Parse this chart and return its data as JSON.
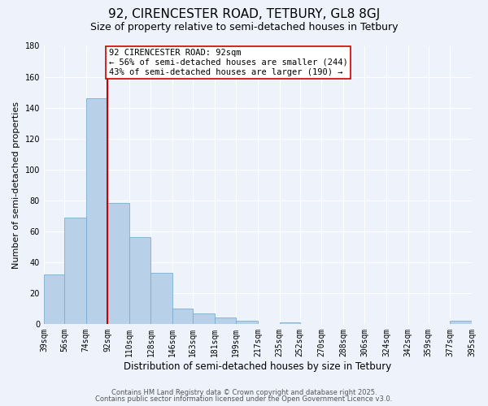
{
  "title": "92, CIRENCESTER ROAD, TETBURY, GL8 8GJ",
  "subtitle": "Size of property relative to semi-detached houses in Tetbury",
  "xlabel": "Distribution of semi-detached houses by size in Tetbury",
  "ylabel": "Number of semi-detached properties",
  "bar_edges": [
    39,
    56,
    74,
    92,
    110,
    128,
    146,
    163,
    181,
    199,
    217,
    235,
    252,
    270,
    288,
    306,
    324,
    342,
    359,
    377,
    395
  ],
  "bar_heights": [
    32,
    69,
    146,
    78,
    56,
    33,
    10,
    7,
    4,
    2,
    0,
    1,
    0,
    0,
    0,
    0,
    0,
    0,
    0,
    2
  ],
  "tick_labels": [
    "39sqm",
    "56sqm",
    "74sqm",
    "92sqm",
    "110sqm",
    "128sqm",
    "146sqm",
    "163sqm",
    "181sqm",
    "199sqm",
    "217sqm",
    "235sqm",
    "252sqm",
    "270sqm",
    "288sqm",
    "306sqm",
    "324sqm",
    "342sqm",
    "359sqm",
    "377sqm",
    "395sqm"
  ],
  "bar_color": "#b8d0e8",
  "bar_edge_color": "#7aaed4",
  "vline_x": 92,
  "vline_color": "#cc0000",
  "annotation_title": "92 CIRENCESTER ROAD: 92sqm",
  "annotation_line1": "← 56% of semi-detached houses are smaller (244)",
  "annotation_line2": "43% of semi-detached houses are larger (190) →",
  "annotation_box_facecolor": "#ffffff",
  "annotation_box_edgecolor": "#cc0000",
  "ylim": [
    0,
    180
  ],
  "yticks": [
    0,
    20,
    40,
    60,
    80,
    100,
    120,
    140,
    160,
    180
  ],
  "footer1": "Contains HM Land Registry data © Crown copyright and database right 2025.",
  "footer2": "Contains public sector information licensed under the Open Government Licence v3.0.",
  "bg_color": "#edf2fb",
  "grid_color": "#ffffff",
  "title_fontsize": 11,
  "subtitle_fontsize": 9,
  "xlabel_fontsize": 8.5,
  "ylabel_fontsize": 8,
  "tick_fontsize": 7,
  "annot_fontsize": 7.5,
  "footer_fontsize": 6
}
